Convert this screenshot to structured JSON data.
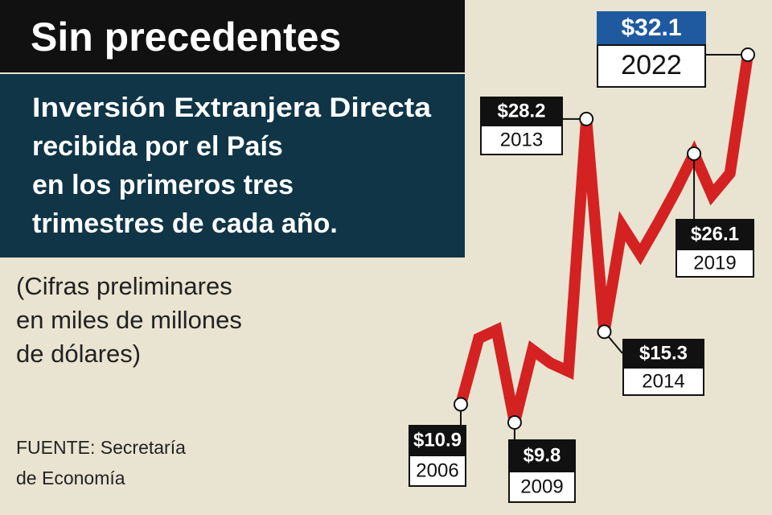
{
  "chart_data": {
    "type": "line",
    "title": "Sin precedentes",
    "subtitle": [
      "Inversión Extranjera Directa",
      "recibida por el País",
      "en los primeros tres",
      "trimestres de cada año."
    ],
    "note": [
      "(Cifras preliminares",
      "en miles de millones",
      "de dólares)"
    ],
    "source": [
      "FUENTE: Secretaría",
      "de Economía"
    ],
    "categories": [
      "2006",
      null,
      null,
      "2009",
      null,
      null,
      null,
      "2013",
      "2014",
      null,
      null,
      null,
      null,
      "2019",
      null,
      null,
      "2022"
    ],
    "values": [
      10.9,
      14.9,
      15.4,
      9.8,
      14.2,
      13.4,
      12.9,
      28.2,
      15.3,
      21.7,
      20.0,
      21.9,
      23.9,
      26.1,
      23.6,
      24.9,
      32.1
    ],
    "value_labels": [
      "$10.9",
      null,
      null,
      "$9.8",
      null,
      null,
      null,
      "$28.2",
      "$15.3",
      null,
      null,
      null,
      null,
      "$26.1",
      null,
      null,
      "$32.1"
    ],
    "color": "#d42222",
    "highlight_color": "#1f5aa0"
  }
}
